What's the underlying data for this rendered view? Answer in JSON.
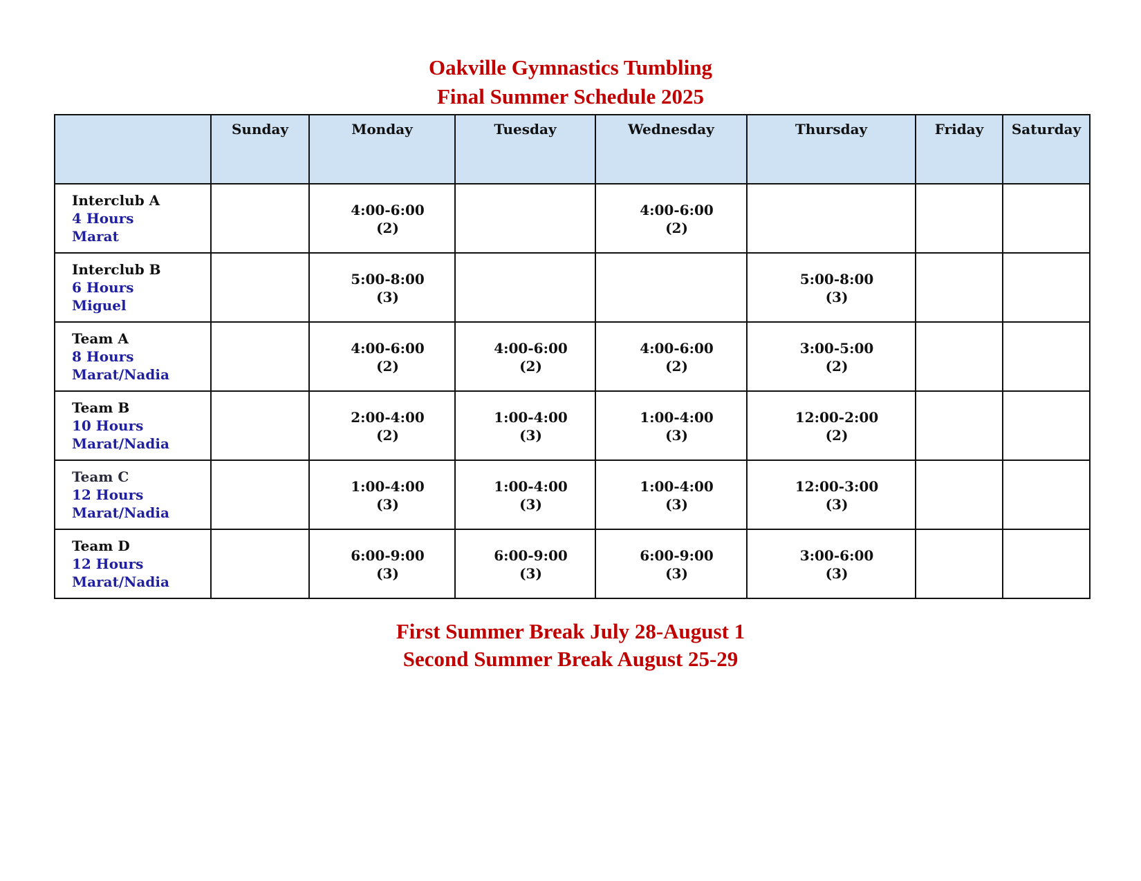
{
  "title": {
    "line1": "Oakville Gymnastics Tumbling",
    "line2": "Final Summer Schedule 2025"
  },
  "colors": {
    "title": "#c00000",
    "header_bg": "#cfe2f3",
    "group_detail": "#1f1fa0"
  },
  "days": [
    "Sunday",
    "Monday",
    "Tuesday",
    "Wednesday",
    "Thursday",
    "Friday",
    "Saturday"
  ],
  "rows": [
    {
      "group": "Interclub A",
      "hours": "4 Hours",
      "coach": "Marat",
      "slots": [
        null,
        {
          "time": "4:00-6:00",
          "dur": "(2)"
        },
        null,
        {
          "time": "4:00-6:00",
          "dur": "(2)"
        },
        null,
        null,
        null
      ]
    },
    {
      "group": "Interclub B",
      "hours": "6 Hours",
      "coach": "Miguel",
      "slots": [
        null,
        {
          "time": "5:00-8:00",
          "dur": "(3)"
        },
        null,
        null,
        {
          "time": "5:00-8:00",
          "dur": "(3)"
        },
        null,
        null
      ]
    },
    {
      "group": "Team A",
      "hours": "8 Hours",
      "coach": "Marat/Nadia",
      "slots": [
        null,
        {
          "time": "4:00-6:00",
          "dur": "(2)"
        },
        {
          "time": "4:00-6:00",
          "dur": "(2)"
        },
        {
          "time": "4:00-6:00",
          "dur": "(2)"
        },
        {
          "time": "3:00-5:00",
          "dur": "(2)"
        },
        null,
        null
      ]
    },
    {
      "group": "Team B",
      "hours": "10 Hours",
      "coach": "Marat/Nadia",
      "slots": [
        null,
        {
          "time": "2:00-4:00",
          "dur": "(2)"
        },
        {
          "time": "1:00-4:00",
          "dur": "(3)"
        },
        {
          "time": "1:00-4:00",
          "dur": "(3)"
        },
        {
          "time": "12:00-2:00",
          "dur": "(2)"
        },
        null,
        null
      ]
    },
    {
      "group": "Team C",
      "hours": "12 Hours",
      "coach": "Marat/Nadia",
      "slots": [
        null,
        {
          "time": "1:00-4:00",
          "dur": "(3)"
        },
        {
          "time": "1:00-4:00",
          "dur": "(3)"
        },
        {
          "time": "1:00-4:00",
          "dur": "(3)"
        },
        {
          "time": "12:00-3:00",
          "dur": "(3)"
        },
        null,
        null
      ]
    },
    {
      "group": "Team D",
      "hours": "12 Hours",
      "coach": "Marat/Nadia",
      "slots": [
        null,
        {
          "time": "6:00-9:00",
          "dur": "(3)"
        },
        {
          "time": "6:00-9:00",
          "dur": "(3)"
        },
        {
          "time": "6:00-9:00",
          "dur": "(3)"
        },
        {
          "time": "3:00-6:00",
          "dur": "(3)"
        },
        null,
        null
      ]
    }
  ],
  "footer": {
    "line1": "First Summer Break July 28-August 1",
    "line2": "Second Summer Break August 25-29"
  }
}
